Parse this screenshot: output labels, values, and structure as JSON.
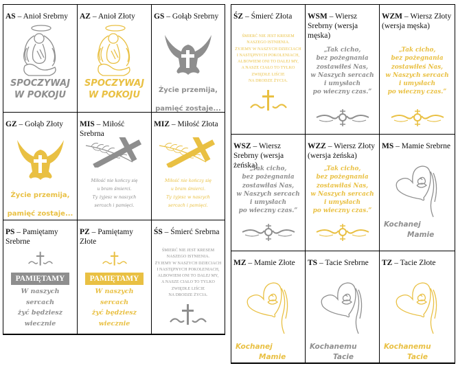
{
  "colors": {
    "silver": "#8e8e8e",
    "gold": "#e9c043"
  },
  "left": [
    {
      "code": "AS",
      "name": "Anioł Srebrny",
      "tone": "silver",
      "art": "angel",
      "lines": [
        "SPOCZYWAJ",
        "W POKOJU"
      ]
    },
    {
      "code": "AZ",
      "name": "Anioł Złoty",
      "tone": "gold",
      "art": "angel",
      "lines": [
        "SPOCZYWAJ",
        "W POKOJU"
      ]
    },
    {
      "code": "GS",
      "name": "Gołąb Srebrny",
      "tone": "silver",
      "art": "dove",
      "lines": [
        "Życie przemija,",
        "pamięć zostaje..."
      ]
    },
    {
      "code": "GZ",
      "name": "Gołąb Złoty",
      "tone": "gold",
      "art": "dove",
      "lines": [
        "Życie przemija,",
        "pamięć zostaje..."
      ]
    },
    {
      "code": "MIS",
      "name": "Miłość Srebrna",
      "tone": "silver",
      "art": "branch",
      "lines": [
        "Miłość nie kończy się",
        "u bram śmierci.",
        "Ty żyjesz w naszych",
        "sercach i pamięci."
      ]
    },
    {
      "code": "MIZ",
      "name": "Miłość Złota",
      "tone": "gold",
      "art": "branch",
      "lines": [
        "Miłość nie kończy się",
        "u bram śmierci.",
        "Ty żyjesz w naszych",
        "sercach i pamięci."
      ]
    },
    {
      "code": "PS",
      "name": "Pamiętamy Srebrne",
      "tone": "silver",
      "art": "pamietamy",
      "banner": "PAMIĘTAMY",
      "lines": [
        "W naszych",
        "sercach",
        "żyć będziesz",
        "wiecznie"
      ]
    },
    {
      "code": "PZ",
      "name": "Pamiętamy Złote",
      "tone": "gold",
      "art": "pamietamy",
      "banner": "PAMIĘTAMY",
      "lines": [
        "W naszych",
        "sercach",
        "żyć będziesz",
        "wiecznie"
      ]
    },
    {
      "code": "ŚS",
      "name": "Śmierć Srebrna",
      "tone": "silver",
      "art": "smierc",
      "lines": [
        "ŚMIERĆ NIE JEST KRESEM",
        "NASZEGO ISTNIENIA.",
        "ŻYJEMY W NASZYCH DZIECIACH",
        "I NASTĘPNYCH POKOLENIACH,",
        "ALBOWIEM ONI TO DALEJ MY,",
        "A NASZE CIAŁO TO TYLKO",
        "ZWIĘDŁE LIŚCIE",
        "NA DRODZE ŻYCIA."
      ]
    }
  ],
  "right": [
    {
      "code": "ŚZ",
      "name": "Śmierć Złota",
      "tone": "gold",
      "art": "smierc",
      "lines": [
        "ŚMIERĆ NIE JEST KRESEM",
        "NASZEGO ISTNIENIA.",
        "ŻYJEMY W NASZYCH DZIECIACH",
        "I NASTĘPNYCH POKOLENIACH,",
        "ALBOWIEM ONI TO DALEJ MY,",
        "A NASZE CIAŁO TO TYLKO",
        "ZWIĘDŁE LIŚCIE",
        "NA DRODZE ŻYCIA."
      ]
    },
    {
      "code": "WSM",
      "name": "Wiersz Srebrny (wersja męska)",
      "tone": "silver",
      "art": "poem",
      "lines": [
        "„Tak cicho,",
        "bez pożegnania",
        "zostawiłeś Nas,",
        "w Naszych sercach",
        "i umysłach",
        "po wieczny czas.”"
      ]
    },
    {
      "code": "WZM",
      "name": "Wiersz Złoty (wersja męska)",
      "tone": "gold",
      "art": "poem",
      "lines": [
        "„Tak cicho,",
        "bez pożegnania",
        "zostawiłeś Nas,",
        "w Naszych sercach",
        "i umysłach",
        "po wieczny czas.”"
      ]
    },
    {
      "code": "WSZ",
      "name": "Wiersz Srebrny (wersja żeńska)",
      "tone": "silver",
      "art": "poem",
      "lines": [
        "„Tak cicho,",
        "bez pożegnania",
        "zostawiłaś Nas,",
        "w Naszych sercach",
        "i umysłach",
        "po wieczny czas.”"
      ]
    },
    {
      "code": "WZZ",
      "name": "Wiersz Złoty (wersja żeńska)",
      "tone": "gold",
      "art": "poem",
      "lines": [
        "„Tak cicho,",
        "bez pożegnania",
        "zostawiłaś Nas,",
        "w Naszych sercach",
        "i umysłach",
        "po wieczny czas.”"
      ]
    },
    {
      "code": "MS",
      "name": "Mamie Srebrne",
      "tone": "silver",
      "art": "heart",
      "lines": [
        "Kochanej",
        "Mamie"
      ]
    },
    {
      "code": "MZ",
      "name": "Mamie Złote",
      "tone": "gold",
      "art": "heart",
      "lines": [
        "Kochanej",
        "Mamie"
      ]
    },
    {
      "code": "TS",
      "name": "Tacie Srebrne",
      "tone": "silver",
      "art": "heart",
      "lines": [
        "Kochanemu",
        "Tacie"
      ]
    },
    {
      "code": "TZ",
      "name": "Tacie Złote",
      "tone": "gold",
      "art": "heart",
      "lines": [
        "Kochanemu",
        "Tacie"
      ]
    }
  ]
}
